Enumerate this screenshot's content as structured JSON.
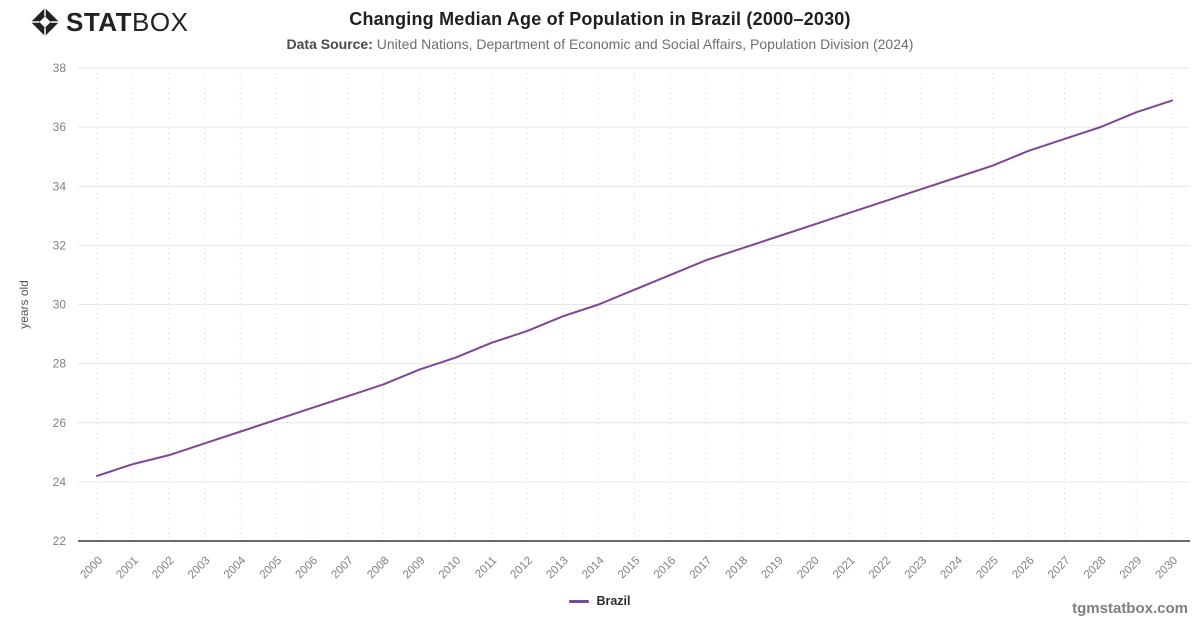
{
  "brand": {
    "logo_stat": "STAT",
    "logo_box": "BOX",
    "icon": "diamond-gem-icon"
  },
  "header": {
    "title": "Changing Median Age of Population in Brazil (2000–2030)",
    "subtitle_label": "Data Source:",
    "subtitle_text": "United Nations, Department of Economic and Social Affairs, Population Division (2024)"
  },
  "legend": {
    "items": [
      {
        "label": "Brazil",
        "color": "#7d4698"
      }
    ]
  },
  "watermark": "tgmstatbox.com",
  "chart_data": {
    "type": "line",
    "title": "Changing Median Age of Population in Brazil (2000–2030)",
    "xlabel": "",
    "ylabel": "years old",
    "ylim": [
      22,
      38
    ],
    "ytick_step": 2,
    "grid": true,
    "legend_position": "bottom",
    "x": [
      2000,
      2001,
      2002,
      2003,
      2004,
      2005,
      2006,
      2007,
      2008,
      2009,
      2010,
      2011,
      2012,
      2013,
      2014,
      2015,
      2016,
      2017,
      2018,
      2019,
      2020,
      2021,
      2022,
      2023,
      2024,
      2025,
      2026,
      2027,
      2028,
      2029,
      2030
    ],
    "series": [
      {
        "name": "Brazil",
        "color": "#7d4698",
        "values": [
          24.2,
          24.6,
          24.9,
          25.3,
          25.7,
          26.1,
          26.5,
          26.9,
          27.3,
          27.8,
          28.2,
          28.7,
          29.1,
          29.6,
          30.0,
          30.5,
          31.0,
          31.5,
          31.9,
          32.3,
          32.7,
          33.1,
          33.5,
          33.9,
          34.3,
          34.7,
          35.2,
          35.6,
          36.0,
          36.5,
          36.9
        ]
      }
    ],
    "colors": {
      "grid_horizontal": "#e6e6e6",
      "grid_vertical": "#d8d8d8",
      "axis_line": "#38383c",
      "tick_label": "#808080",
      "axis_title": "#555555"
    }
  }
}
